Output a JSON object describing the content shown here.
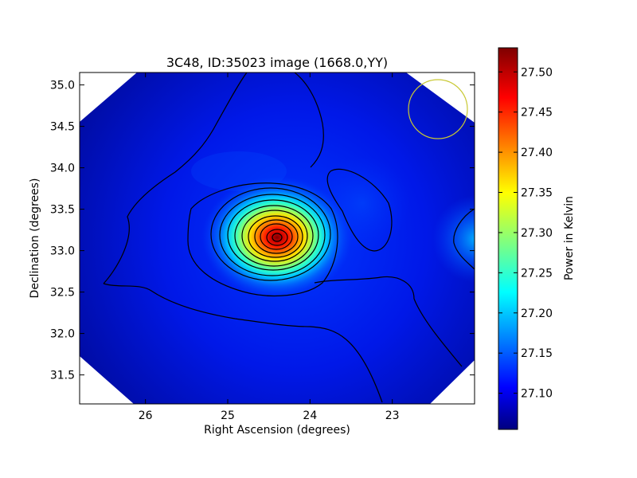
{
  "chart_data": {
    "type": "heatmap",
    "title": "3C48, ID:35023 image (1668.0,YY)",
    "xlabel": "Right Ascension (degrees)",
    "ylabel": "Declination (degrees)",
    "colorbar_label": "Power in Kelvin",
    "colormap": "jet",
    "x_ticks": [
      26,
      25,
      24,
      23
    ],
    "x_tick_labels": [
      "26",
      "25",
      "24",
      "23"
    ],
    "xlim": [
      26.8,
      22.0
    ],
    "y_ticks": [
      31.5,
      32.0,
      32.5,
      33.0,
      33.5,
      34.0,
      34.5,
      35.0
    ],
    "y_tick_labels": [
      "31.5",
      "32.0",
      "32.5",
      "33.0",
      "33.5",
      "34.0",
      "34.5",
      "35.0"
    ],
    "ylim": [
      31.15,
      35.15
    ],
    "colorbar_ticks": [
      27.1,
      27.15,
      27.2,
      27.25,
      27.3,
      27.35,
      27.4,
      27.45,
      27.5
    ],
    "colorbar_tick_labels": [
      "27.10",
      "27.15",
      "27.20",
      "27.25",
      "27.30",
      "27.35",
      "27.40",
      "27.45",
      "27.50"
    ],
    "colorbar_range": [
      27.055,
      27.53
    ],
    "peak": {
      "ra": 24.4,
      "dec": 33.18,
      "value": 27.52
    },
    "beam_marker": {
      "ra": 22.48,
      "dec": 34.72,
      "radius_deg": 0.36,
      "color": "#c8c832"
    },
    "contour_color": "#000000"
  }
}
